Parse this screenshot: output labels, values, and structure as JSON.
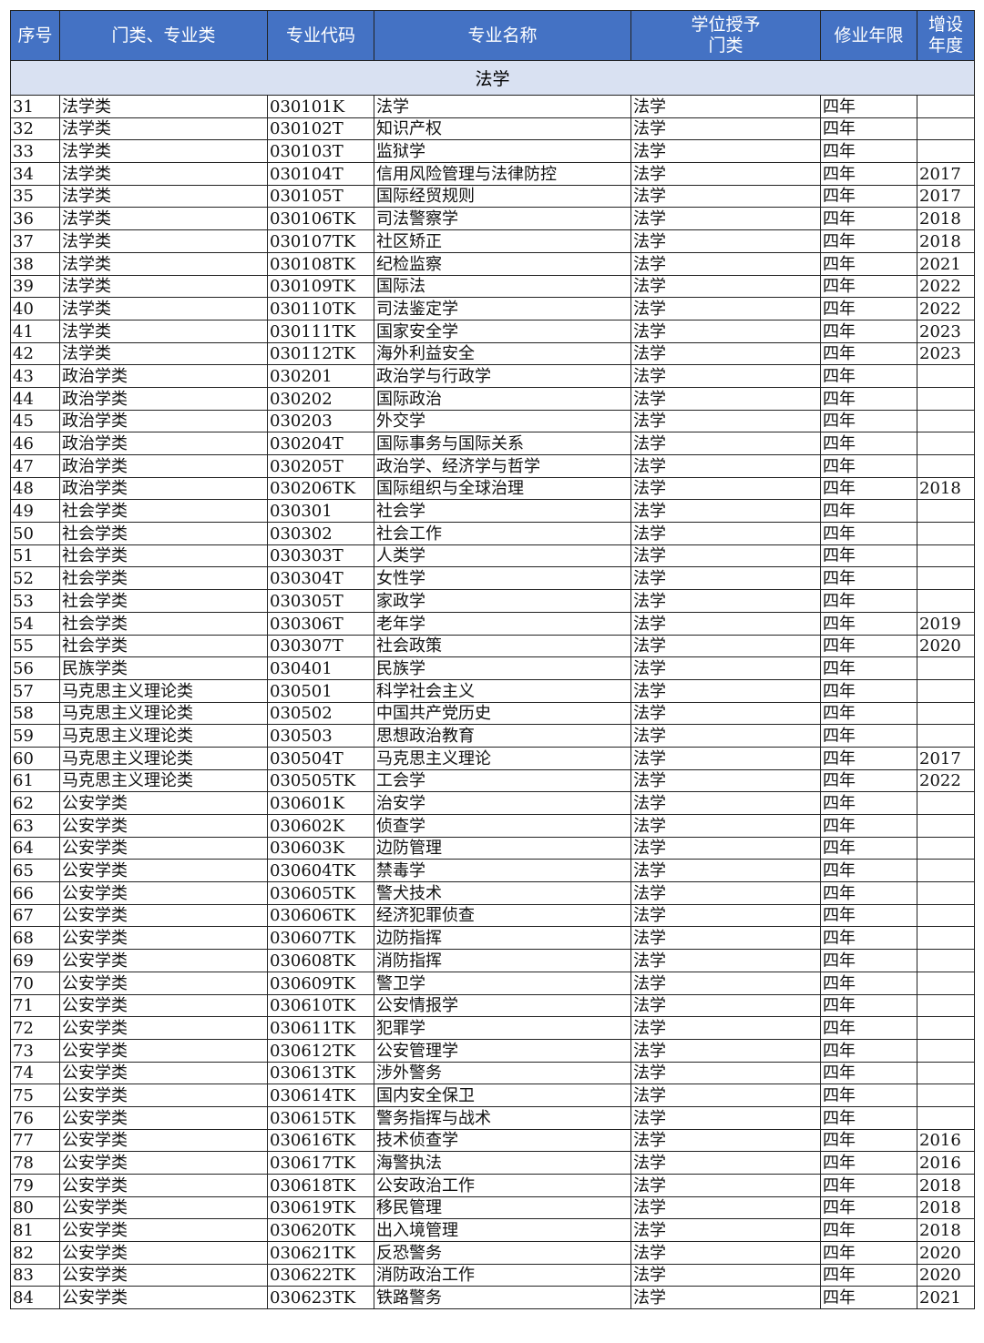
{
  "header": {
    "columns": [
      "序号",
      "门类、专业类",
      "专业代码",
      "专业名称",
      "学位授予门类",
      "修业年限",
      "增设年度"
    ],
    "header_color": "#4472C4",
    "section_color": "#D9E1F2"
  },
  "section_title": "法学",
  "rows": [
    [
      "31",
      "法学类",
      "030101K",
      "法学",
      "法学",
      "四年",
      ""
    ],
    [
      "32",
      "法学类",
      "030102T",
      "知识产权",
      "法学",
      "四年",
      ""
    ],
    [
      "33",
      "法学类",
      "030103T",
      "监狱学",
      "法学",
      "四年",
      ""
    ],
    [
      "34",
      "法学类",
      "030104T",
      "信用风险管理与法律防控",
      "法学",
      "四年",
      "2017"
    ],
    [
      "35",
      "法学类",
      "030105T",
      "国际经贸规则",
      "法学",
      "四年",
      "2017"
    ],
    [
      "36",
      "法学类",
      "030106TK",
      "司法警察学",
      "法学",
      "四年",
      "2018"
    ],
    [
      "37",
      "法学类",
      "030107TK",
      "社区矫正",
      "法学",
      "四年",
      "2018"
    ],
    [
      "38",
      "法学类",
      "030108TK",
      "纪检监察",
      "法学",
      "四年",
      "2021"
    ],
    [
      "39",
      "法学类",
      "030109TK",
      "国际法",
      "法学",
      "四年",
      "2022"
    ],
    [
      "40",
      "法学类",
      "030110TK",
      "司法鉴定学",
      "法学",
      "四年",
      "2022"
    ],
    [
      "41",
      "法学类",
      "030111TK",
      "国家安全学",
      "法学",
      "四年",
      "2023"
    ],
    [
      "42",
      "法学类",
      "030112TK",
      "海外利益安全",
      "法学",
      "四年",
      "2023"
    ],
    [
      "43",
      "政治学类",
      "030201",
      "政治学与行政学",
      "法学",
      "四年",
      ""
    ],
    [
      "44",
      "政治学类",
      "030202",
      "国际政治",
      "法学",
      "四年",
      ""
    ],
    [
      "45",
      "政治学类",
      "030203",
      "外交学",
      "法学",
      "四年",
      ""
    ],
    [
      "46",
      "政治学类",
      "030204T",
      "国际事务与国际关系",
      "法学",
      "四年",
      ""
    ],
    [
      "47",
      "政治学类",
      "030205T",
      "政治学、经济学与哲学",
      "法学",
      "四年",
      ""
    ],
    [
      "48",
      "政治学类",
      "030206TK",
      "国际组织与全球治理",
      "法学",
      "四年",
      "2018"
    ],
    [
      "49",
      "社会学类",
      "030301",
      "社会学",
      "法学",
      "四年",
      ""
    ],
    [
      "50",
      "社会学类",
      "030302",
      "社会工作",
      "法学",
      "四年",
      ""
    ],
    [
      "51",
      "社会学类",
      "030303T",
      "人类学",
      "法学",
      "四年",
      ""
    ],
    [
      "52",
      "社会学类",
      "030304T",
      "女性学",
      "法学",
      "四年",
      ""
    ],
    [
      "53",
      "社会学类",
      "030305T",
      "家政学",
      "法学",
      "四年",
      ""
    ],
    [
      "54",
      "社会学类",
      "030306T",
      "老年学",
      "法学",
      "四年",
      "2019"
    ],
    [
      "55",
      "社会学类",
      "030307T",
      "社会政策",
      "法学",
      "四年",
      "2020"
    ],
    [
      "56",
      "民族学类",
      "030401",
      "民族学",
      "法学",
      "四年",
      ""
    ],
    [
      "57",
      "马克思主义理论类",
      "030501",
      "科学社会主义",
      "法学",
      "四年",
      ""
    ],
    [
      "58",
      "马克思主义理论类",
      "030502",
      "中国共产党历史",
      "法学",
      "四年",
      ""
    ],
    [
      "59",
      "马克思主义理论类",
      "030503",
      "思想政治教育",
      "法学",
      "四年",
      ""
    ],
    [
      "60",
      "马克思主义理论类",
      "030504T",
      "马克思主义理论",
      "法学",
      "四年",
      "2017"
    ],
    [
      "61",
      "马克思主义理论类",
      "030505TK",
      "工会学",
      "法学",
      "四年",
      "2022"
    ],
    [
      "62",
      "公安学类",
      "030601K",
      "治安学",
      "法学",
      "四年",
      ""
    ],
    [
      "63",
      "公安学类",
      "030602K",
      "侦查学",
      "法学",
      "四年",
      ""
    ],
    [
      "64",
      "公安学类",
      "030603K",
      "边防管理",
      "法学",
      "四年",
      ""
    ],
    [
      "65",
      "公安学类",
      "030604TK",
      "禁毒学",
      "法学",
      "四年",
      ""
    ],
    [
      "66",
      "公安学类",
      "030605TK",
      "警犬技术",
      "法学",
      "四年",
      ""
    ],
    [
      "67",
      "公安学类",
      "030606TK",
      "经济犯罪侦查",
      "法学",
      "四年",
      ""
    ],
    [
      "68",
      "公安学类",
      "030607TK",
      "边防指挥",
      "法学",
      "四年",
      ""
    ],
    [
      "69",
      "公安学类",
      "030608TK",
      "消防指挥",
      "法学",
      "四年",
      ""
    ],
    [
      "70",
      "公安学类",
      "030609TK",
      "警卫学",
      "法学",
      "四年",
      ""
    ],
    [
      "71",
      "公安学类",
      "030610TK",
      "公安情报学",
      "法学",
      "四年",
      ""
    ],
    [
      "72",
      "公安学类",
      "030611TK",
      "犯罪学",
      "法学",
      "四年",
      ""
    ],
    [
      "73",
      "公安学类",
      "030612TK",
      "公安管理学",
      "法学",
      "四年",
      ""
    ],
    [
      "74",
      "公安学类",
      "030613TK",
      "涉外警务",
      "法学",
      "四年",
      ""
    ],
    [
      "75",
      "公安学类",
      "030614TK",
      "国内安全保卫",
      "法学",
      "四年",
      ""
    ],
    [
      "76",
      "公安学类",
      "030615TK",
      "警务指挥与战术",
      "法学",
      "四年",
      ""
    ],
    [
      "77",
      "公安学类",
      "030616TK",
      "技术侦查学",
      "法学",
      "四年",
      "2016"
    ],
    [
      "78",
      "公安学类",
      "030617TK",
      "海警执法",
      "法学",
      "四年",
      "2016"
    ],
    [
      "79",
      "公安学类",
      "030618TK",
      "公安政治工作",
      "法学",
      "四年",
      "2018"
    ],
    [
      "80",
      "公安学类",
      "030619TK",
      "移民管理",
      "法学",
      "四年",
      "2018"
    ],
    [
      "81",
      "公安学类",
      "030620TK",
      "出入境管理",
      "法学",
      "四年",
      "2018"
    ],
    [
      "82",
      "公安学类",
      "030621TK",
      "反恐警务",
      "法学",
      "四年",
      "2020"
    ],
    [
      "83",
      "公安学类",
      "030622TK",
      "消防政治工作",
      "法学",
      "四年",
      "2020"
    ],
    [
      "84",
      "公安学类",
      "030623TK",
      "铁路警务",
      "法学",
      "四年",
      "2021"
    ]
  ]
}
